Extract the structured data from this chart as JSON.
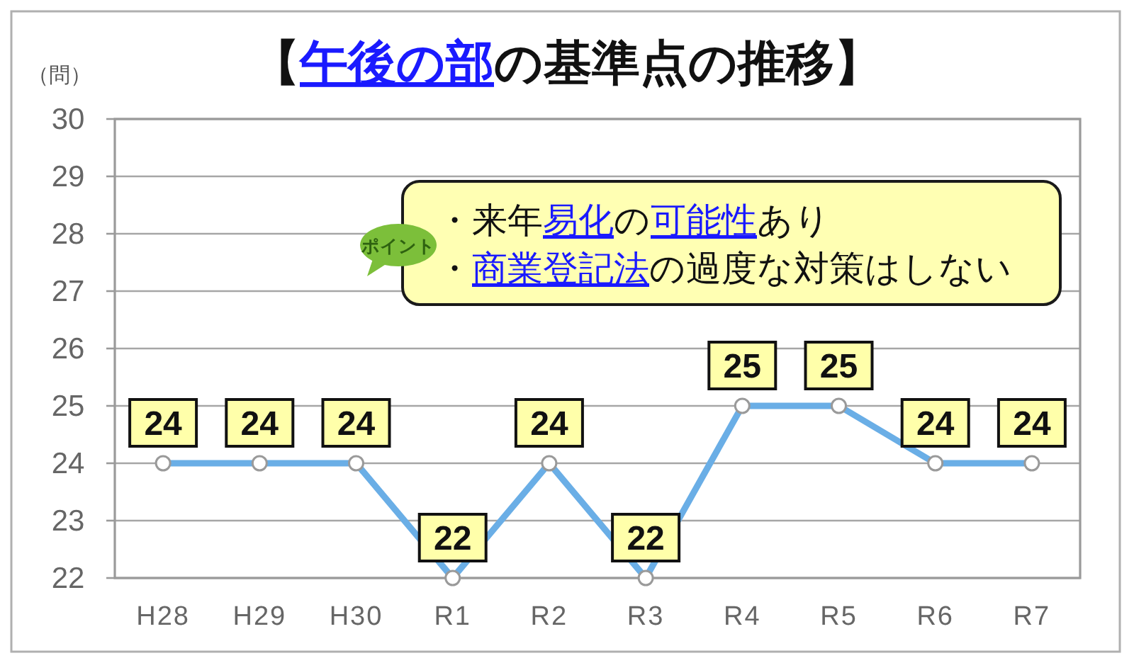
{
  "chart_data": {
    "type": "line",
    "title": "【**午後の部**の基準点の推移】",
    "ylabel": "（問）",
    "categories": [
      "H28",
      "H29",
      "H30",
      "R1",
      "R2",
      "R3",
      "R4",
      "R5",
      "R6",
      "R7"
    ],
    "values": [
      24,
      24,
      24,
      22,
      24,
      22,
      25,
      25,
      24,
      24
    ],
    "color": "#6aaee6",
    "ylim": [
      22,
      30
    ],
    "yticks": [
      22,
      23,
      24,
      25,
      26,
      27,
      28,
      29,
      30
    ],
    "grid": "y",
    "marker": "circle",
    "line_style": "solid",
    "data_labels": true,
    "annotations": [
      "ポイント",
      "・来年**易化**の**可能性**あり",
      "・**商業登記法**の過度な対策はしない"
    ]
  }
}
